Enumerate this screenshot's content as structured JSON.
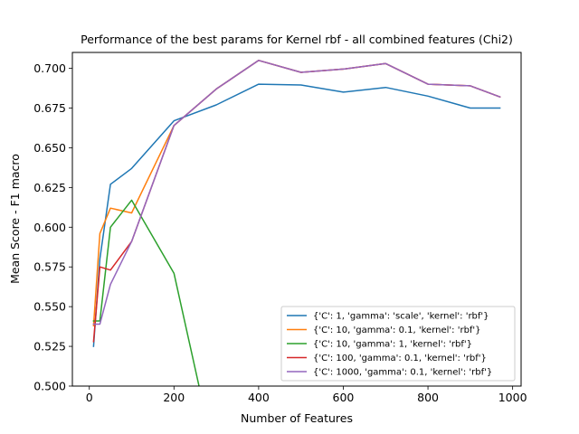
{
  "chart_data": {
    "type": "line",
    "title": "Performance of the best params for Kernel rbf - all combined features (Chi2)",
    "xlabel": "Number of Features",
    "ylabel": "Mean Score - F1 macro",
    "xlim": [
      -40,
      1020
    ],
    "ylim": [
      0.5,
      0.71
    ],
    "xticks": [
      0,
      200,
      400,
      600,
      800,
      1000
    ],
    "yticks": [
      0.5,
      0.525,
      0.55,
      0.575,
      0.6,
      0.625,
      0.65,
      0.675,
      0.7
    ],
    "xtick_labels": [
      "0",
      "200",
      "400",
      "600",
      "800",
      "1000"
    ],
    "ytick_labels": [
      "0.500",
      "0.525",
      "0.550",
      "0.575",
      "0.600",
      "0.625",
      "0.650",
      "0.675",
      "0.700"
    ],
    "grid": false,
    "legend_position": "lower-right",
    "series": [
      {
        "name": "{'C': 1, 'gamma': 'scale', 'kernel': 'rbf'}",
        "color": "#1f77b4",
        "x": [
          10,
          25,
          50,
          100,
          200,
          300,
          400,
          500,
          600,
          700,
          800,
          900,
          970
        ],
        "values": [
          0.525,
          0.58,
          0.627,
          0.637,
          0.667,
          0.677,
          0.69,
          0.6895,
          0.685,
          0.688,
          0.6825,
          0.675,
          0.675
        ]
      },
      {
        "name": "{'C': 10, 'gamma': 0.1, 'kernel': 'rbf'}",
        "color": "#ff7f0e",
        "x": [
          10,
          25,
          50,
          100,
          200,
          300,
          400,
          500,
          600,
          700,
          800,
          900,
          970
        ],
        "values": [
          0.538,
          0.596,
          0.612,
          0.609,
          0.664,
          0.687,
          0.705,
          0.6975,
          0.6995,
          0.703,
          0.69,
          0.689,
          0.682
        ]
      },
      {
        "name": "{'C': 10, 'gamma': 1, 'kernel': 'rbf'}",
        "color": "#2ca02c",
        "x": [
          10,
          25,
          50,
          100,
          200,
          260
        ],
        "values": [
          0.541,
          0.541,
          0.6,
          0.617,
          0.571,
          0.499
        ]
      },
      {
        "name": "{'C': 100, 'gamma': 0.1, 'kernel': 'rbf'}",
        "color": "#d62728",
        "x": [
          10,
          25,
          50,
          100,
          200,
          300,
          400,
          500,
          600,
          700,
          800,
          900,
          970
        ],
        "values": [
          0.528,
          0.575,
          0.573,
          0.591,
          0.664,
          0.687,
          0.705,
          0.6975,
          0.6995,
          0.703,
          0.69,
          0.689,
          0.682
        ]
      },
      {
        "name": "{'C': 1000, 'gamma': 0.1, 'kernel': 'rbf'}",
        "color": "#9467bd",
        "x": [
          10,
          25,
          50,
          100,
          200,
          300,
          400,
          500,
          600,
          700,
          800,
          900,
          970
        ],
        "values": [
          0.539,
          0.539,
          0.564,
          0.591,
          0.664,
          0.687,
          0.705,
          0.6975,
          0.6995,
          0.703,
          0.69,
          0.689,
          0.682
        ]
      }
    ]
  }
}
